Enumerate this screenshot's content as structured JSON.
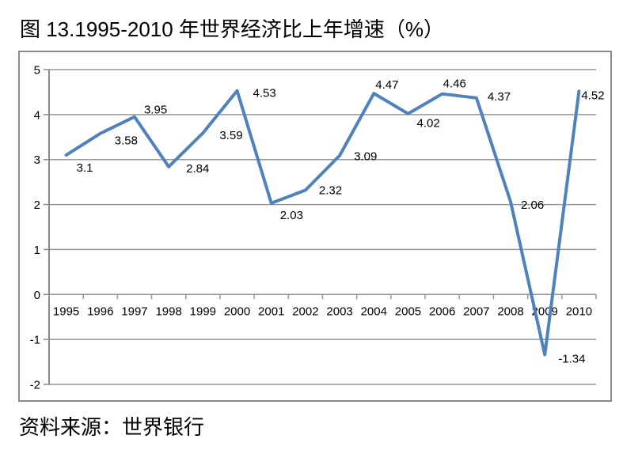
{
  "page": {
    "title": "图 13.1995-2010 年世界经济比上年增速（%）",
    "source": "资料来源：世界银行"
  },
  "chart_data": {
    "type": "line",
    "title": "图 13.1995-2010 年世界经济比上年增速（%）",
    "source_note": "资料来源：世界银行",
    "categories": [
      "1995",
      "1996",
      "1997",
      "1998",
      "1999",
      "2000",
      "2001",
      "2002",
      "2003",
      "2004",
      "2005",
      "2006",
      "2007",
      "2008",
      "2009",
      "2010"
    ],
    "values": [
      3.1,
      3.58,
      3.95,
      2.84,
      3.59,
      4.53,
      2.03,
      2.32,
      3.09,
      4.47,
      4.02,
      4.46,
      4.37,
      2.06,
      -1.34,
      4.52
    ],
    "point_labels": [
      "3.1",
      "3.58",
      "3.95",
      "2.84",
      "3.59",
      "4.53",
      "2.03",
      "2.32",
      "3.09",
      "4.47",
      "4.02",
      "4.46",
      "4.37",
      "2.06",
      "-1.34",
      "4.52"
    ],
    "xlabel": "",
    "ylabel": "",
    "ylim": [
      -2,
      5
    ],
    "yticks": [
      5,
      4,
      3,
      2,
      1,
      0,
      -1,
      -2
    ],
    "grid": true,
    "legend": false,
    "colors": {
      "line": "#4F81BD",
      "gridline": "#969696",
      "axis": "#8a8a8a",
      "frame_border": "#8a8a8a",
      "text": "#000000"
    }
  }
}
